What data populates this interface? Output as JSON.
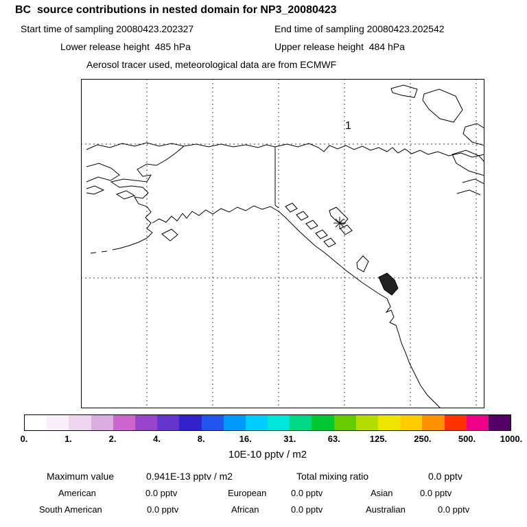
{
  "header": {
    "title": "BC  source contributions in nested domain for NP3_20080423",
    "start_time": "Start time of sampling 20080423.202327",
    "end_time": "End time of sampling 20080423.202542",
    "lower_release": "Lower release height  485 hPa",
    "upper_release": "Upper release height  484 hPa",
    "tracer_line": "Aerosol tracer used, meteorological data are from ECMWF"
  },
  "map": {
    "release_point_label": "1"
  },
  "colorbar": {
    "colors": [
      "#ffffff",
      "#faf0fa",
      "#eed6ee",
      "#dcaee0",
      "#cc66cc",
      "#9944cc",
      "#6633cc",
      "#3322cc",
      "#2255ee",
      "#0099ff",
      "#00ccff",
      "#00e6dd",
      "#00d883",
      "#00c832",
      "#66cc00",
      "#b4dd00",
      "#eee600",
      "#ffcc00",
      "#ff9100",
      "#ff3300",
      "#ee0088",
      "#550066"
    ],
    "tick_labels": [
      "0.",
      "1.",
      "2.",
      "4.",
      "8.",
      "16.",
      "31.",
      "63.",
      "125.",
      "250.",
      "500.",
      "1000."
    ],
    "unit_label": "10E-10 pptv / m2"
  },
  "stats": {
    "max_label": "Maximum value",
    "max_value": "0.941E-13 pptv / m2",
    "total_label": "Total mixing ratio",
    "total_value": "0.0 pptv",
    "regions": [
      {
        "label": "American",
        "value": "0.0 pptv"
      },
      {
        "label": "European",
        "value": "0.0 pptv"
      },
      {
        "label": "Asian",
        "value": "0.0 pptv"
      },
      {
        "label": "South American",
        "value": "0.0 pptv"
      },
      {
        "label": "African",
        "value": "0.0 pptv"
      },
      {
        "label": "Australian",
        "value": "0.0 pptv"
      }
    ]
  },
  "chart_data": {
    "type": "heatmap",
    "title": "BC source contributions in nested domain for NP3_20080423",
    "field_units": "10E-10 pptv / m2",
    "colorbar_levels": [
      0,
      1,
      2,
      4,
      8,
      16,
      31,
      63,
      125,
      250,
      500,
      1000
    ],
    "filled_contours_visible": "none (entire field below lowest color level)",
    "release_points": [
      "1"
    ],
    "maximum_value": "0.941E-13 pptv / m2",
    "total_mixing_ratio": "0.0 pptv",
    "regional_mixing_ratios": {
      "American": "0.0 pptv",
      "European": "0.0 pptv",
      "Asian": "0.0 pptv",
      "South American": "0.0 pptv",
      "African": "0.0 pptv",
      "Australian": "0.0 pptv"
    }
  }
}
